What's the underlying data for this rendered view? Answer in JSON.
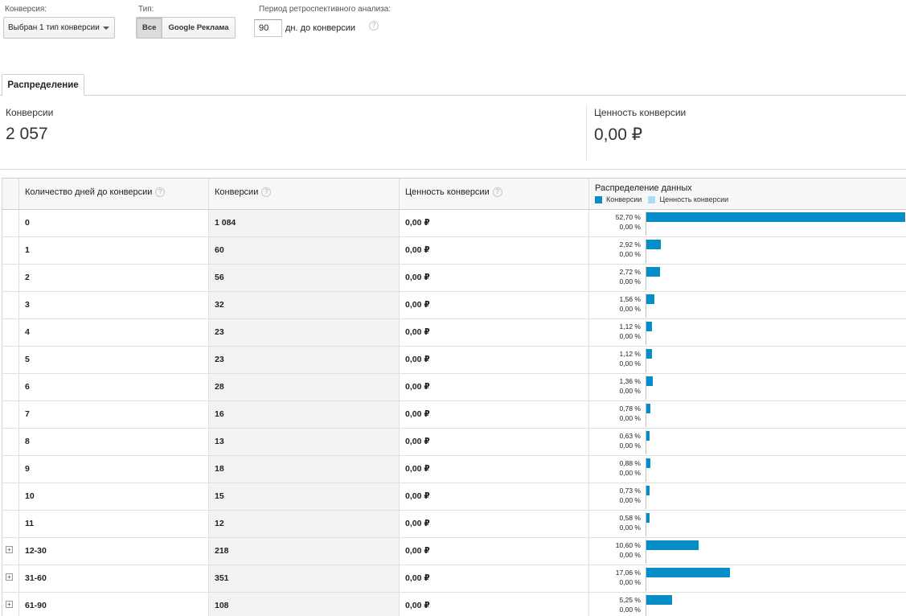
{
  "controls": {
    "conversion_label": "Конверсия:",
    "conversion_value": "Выбран 1 тип конверсии",
    "type_label": "Тип:",
    "type_all": "Все",
    "type_google": "Google Реклама",
    "lookback_label": "Период ретроспективного анализа:",
    "lookback_value": "90",
    "lookback_suffix": "дн. до конверсии",
    "help_glyph": "?"
  },
  "tab": {
    "label": "Распределение"
  },
  "summary": {
    "conversions_label": "Конверсии",
    "conversions_value": "2 057",
    "value_label": "Ценность конверсии",
    "value_value": "0,00 ₽"
  },
  "table": {
    "headers": {
      "days": "Количество дней до конверсии",
      "conversions": "Конверсии",
      "value": "Ценность конверсии",
      "distribution": "Распределение данных"
    },
    "legend": [
      {
        "label": "Конверсии",
        "color": "#058dc7"
      },
      {
        "label": "Ценность конверсии",
        "color": "#aadff3"
      }
    ],
    "rows": [
      {
        "days": "0",
        "conversions": "1 084",
        "value": "0,00 ₽",
        "pct_conv": "52,70 %",
        "pct_value": "0,00 %",
        "share": 52.7,
        "expandable": false
      },
      {
        "days": "1",
        "conversions": "60",
        "value": "0,00 ₽",
        "pct_conv": "2,92 %",
        "pct_value": "0,00 %",
        "share": 2.92,
        "expandable": false
      },
      {
        "days": "2",
        "conversions": "56",
        "value": "0,00 ₽",
        "pct_conv": "2,72 %",
        "pct_value": "0,00 %",
        "share": 2.72,
        "expandable": false
      },
      {
        "days": "3",
        "conversions": "32",
        "value": "0,00 ₽",
        "pct_conv": "1,56 %",
        "pct_value": "0,00 %",
        "share": 1.56,
        "expandable": false
      },
      {
        "days": "4",
        "conversions": "23",
        "value": "0,00 ₽",
        "pct_conv": "1,12 %",
        "pct_value": "0,00 %",
        "share": 1.12,
        "expandable": false
      },
      {
        "days": "5",
        "conversions": "23",
        "value": "0,00 ₽",
        "pct_conv": "1,12 %",
        "pct_value": "0,00 %",
        "share": 1.12,
        "expandable": false
      },
      {
        "days": "6",
        "conversions": "28",
        "value": "0,00 ₽",
        "pct_conv": "1,36 %",
        "pct_value": "0,00 %",
        "share": 1.36,
        "expandable": false
      },
      {
        "days": "7",
        "conversions": "16",
        "value": "0,00 ₽",
        "pct_conv": "0,78 %",
        "pct_value": "0,00 %",
        "share": 0.78,
        "expandable": false
      },
      {
        "days": "8",
        "conversions": "13",
        "value": "0,00 ₽",
        "pct_conv": "0,63 %",
        "pct_value": "0,00 %",
        "share": 0.63,
        "expandable": false
      },
      {
        "days": "9",
        "conversions": "18",
        "value": "0,00 ₽",
        "pct_conv": "0,88 %",
        "pct_value": "0,00 %",
        "share": 0.88,
        "expandable": false
      },
      {
        "days": "10",
        "conversions": "15",
        "value": "0,00 ₽",
        "pct_conv": "0,73 %",
        "pct_value": "0,00 %",
        "share": 0.73,
        "expandable": false
      },
      {
        "days": "11",
        "conversions": "12",
        "value": "0,00 ₽",
        "pct_conv": "0,58 %",
        "pct_value": "0,00 %",
        "share": 0.58,
        "expandable": false
      },
      {
        "days": "12-30",
        "conversions": "218",
        "value": "0,00 ₽",
        "pct_conv": "10,60 %",
        "pct_value": "0,00 %",
        "share": 10.6,
        "expandable": true
      },
      {
        "days": "31-60",
        "conversions": "351",
        "value": "0,00 ₽",
        "pct_conv": "17,06 %",
        "pct_value": "0,00 %",
        "share": 17.06,
        "expandable": true
      },
      {
        "days": "61-90",
        "conversions": "108",
        "value": "0,00 ₽",
        "pct_conv": "5,25 %",
        "pct_value": "0,00 %",
        "share": 5.25,
        "expandable": true
      }
    ]
  }
}
